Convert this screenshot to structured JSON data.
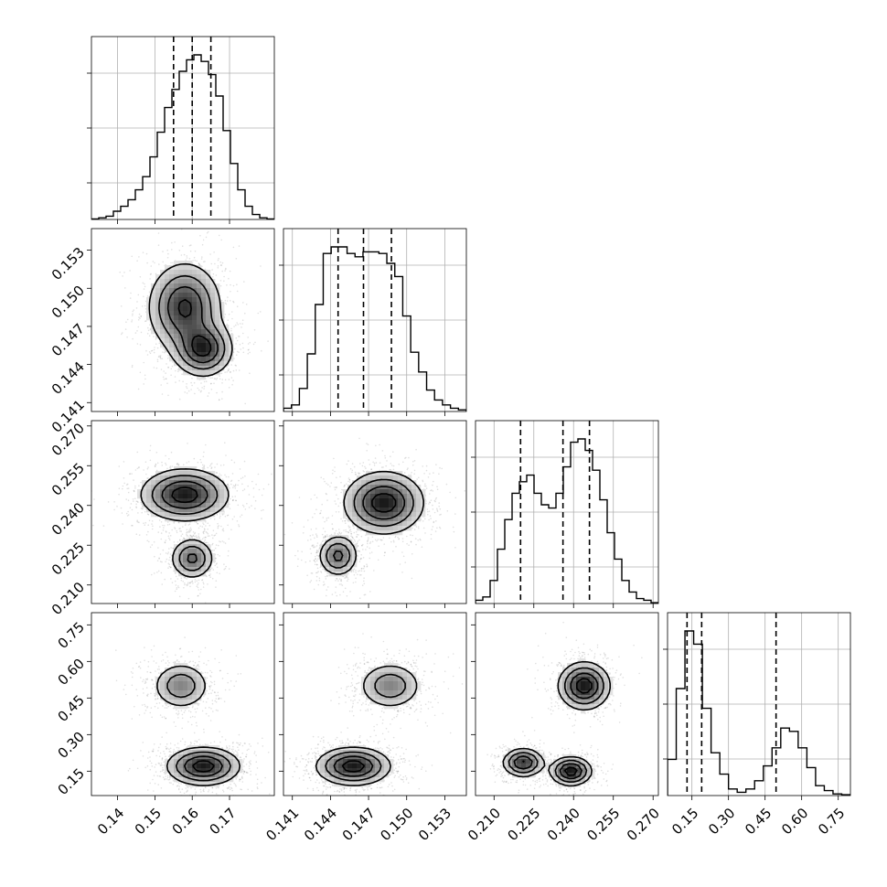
{
  "chart_data": {
    "type": "corner",
    "title": "",
    "parameters": [
      {
        "range": [
          0.133,
          0.182
        ],
        "ticks": [
          0.14,
          0.15,
          0.16,
          0.17
        ],
        "tick_labels": [
          "0.14",
          "0.15",
          "0.16",
          "0.17"
        ],
        "quantiles": [
          0.155,
          0.16,
          0.165
        ]
      },
      {
        "range": [
          0.1403,
          0.1547
        ],
        "ticks": [
          0.141,
          0.144,
          0.147,
          0.15,
          0.153
        ],
        "tick_labels": [
          "0.141",
          "0.144",
          "0.147",
          "0.150",
          "0.153"
        ],
        "quantiles": [
          0.1446,
          0.1466,
          0.1488
        ]
      },
      {
        "range": [
          0.203,
          0.272
        ],
        "ticks": [
          0.21,
          0.225,
          0.24,
          0.255,
          0.27
        ],
        "tick_labels": [
          "0.210",
          "0.225",
          "0.240",
          "0.255",
          "0.270"
        ],
        "quantiles": [
          0.22,
          0.236,
          0.246
        ]
      },
      {
        "range": [
          0.05,
          0.8
        ],
        "ticks": [
          0.15,
          0.3,
          0.45,
          0.6,
          0.75
        ],
        "tick_labels": [
          "0.15",
          "0.30",
          "0.45",
          "0.60",
          "0.75"
        ],
        "quantiles": [
          0.13,
          0.19,
          0.495
        ]
      }
    ],
    "histograms": [
      {
        "param": 0,
        "edges": [
          0.133,
          0.182
        ],
        "counts": [
          0.003,
          0.01,
          0.02,
          0.05,
          0.08,
          0.12,
          0.18,
          0.26,
          0.38,
          0.53,
          0.68,
          0.79,
          0.9,
          0.97,
          1.0,
          0.96,
          0.88,
          0.75,
          0.54,
          0.34,
          0.18,
          0.08,
          0.03,
          0.01,
          0.003
        ]
      },
      {
        "param": 1,
        "edges": [
          0.1403,
          0.1547
        ],
        "counts": [
          0.02,
          0.04,
          0.14,
          0.35,
          0.65,
          0.96,
          1.0,
          1.0,
          0.96,
          0.94,
          0.97,
          0.97,
          0.96,
          0.9,
          0.82,
          0.58,
          0.36,
          0.24,
          0.13,
          0.07,
          0.04,
          0.02,
          0.01
        ]
      },
      {
        "param": 2,
        "edges": [
          0.203,
          0.272
        ],
        "counts": [
          0.02,
          0.04,
          0.14,
          0.33,
          0.51,
          0.67,
          0.74,
          0.78,
          0.67,
          0.6,
          0.58,
          0.67,
          0.83,
          0.98,
          1.0,
          0.93,
          0.81,
          0.63,
          0.43,
          0.27,
          0.14,
          0.07,
          0.03,
          0.02,
          0.005
        ]
      },
      {
        "param": 3,
        "edges": [
          0.05,
          0.8
        ],
        "counts": [
          0.22,
          0.65,
          1.0,
          0.92,
          0.53,
          0.26,
          0.13,
          0.04,
          0.02,
          0.04,
          0.09,
          0.18,
          0.29,
          0.41,
          0.39,
          0.29,
          0.17,
          0.06,
          0.03,
          0.01,
          0.005
        ]
      }
    ],
    "pair_modes": [
      {
        "x": 0,
        "y": 1,
        "modes": [
          {
            "cx": 0.158,
            "cy": 0.1485,
            "sx": 0.005,
            "sy": 0.0018,
            "w": 0.5
          },
          {
            "cx": 0.163,
            "cy": 0.1452,
            "sx": 0.004,
            "sy": 0.0011,
            "w": 0.5
          }
        ]
      },
      {
        "x": 0,
        "y": 2,
        "modes": [
          {
            "cx": 0.158,
            "cy": 0.244,
            "sx": 0.006,
            "sy": 0.005,
            "w": 0.6
          },
          {
            "cx": 0.16,
            "cy": 0.22,
            "sx": 0.003,
            "sy": 0.004,
            "w": 0.4
          }
        ]
      },
      {
        "x": 0,
        "y": 3,
        "modes": [
          {
            "cx": 0.157,
            "cy": 0.5,
            "sx": 0.004,
            "sy": 0.05,
            "w": 0.35
          },
          {
            "cx": 0.163,
            "cy": 0.17,
            "sx": 0.005,
            "sy": 0.04,
            "w": 0.65
          }
        ]
      },
      {
        "x": 1,
        "y": 2,
        "modes": [
          {
            "cx": 0.1482,
            "cy": 0.241,
            "sx": 0.0016,
            "sy": 0.006,
            "w": 0.6
          },
          {
            "cx": 0.1446,
            "cy": 0.221,
            "sx": 0.0008,
            "sy": 0.004,
            "w": 0.4
          }
        ]
      },
      {
        "x": 1,
        "y": 3,
        "modes": [
          {
            "cx": 0.1487,
            "cy": 0.5,
            "sx": 0.0013,
            "sy": 0.05,
            "w": 0.35
          },
          {
            "cx": 0.1458,
            "cy": 0.17,
            "sx": 0.0015,
            "sy": 0.04,
            "w": 0.65
          }
        ]
      },
      {
        "x": 2,
        "y": 3,
        "modes": [
          {
            "cx": 0.244,
            "cy": 0.5,
            "sx": 0.005,
            "sy": 0.05,
            "w": 0.35
          },
          {
            "cx": 0.221,
            "cy": 0.185,
            "sx": 0.004,
            "sy": 0.03,
            "w": 0.3
          },
          {
            "cx": 0.239,
            "cy": 0.15,
            "sx": 0.004,
            "sy": 0.03,
            "w": 0.35
          }
        ]
      }
    ],
    "contour_levels": [
      0.15,
      0.35,
      0.6,
      0.85
    ],
    "scatter": "grey points surround the contours",
    "grid": true,
    "legend": "none"
  }
}
